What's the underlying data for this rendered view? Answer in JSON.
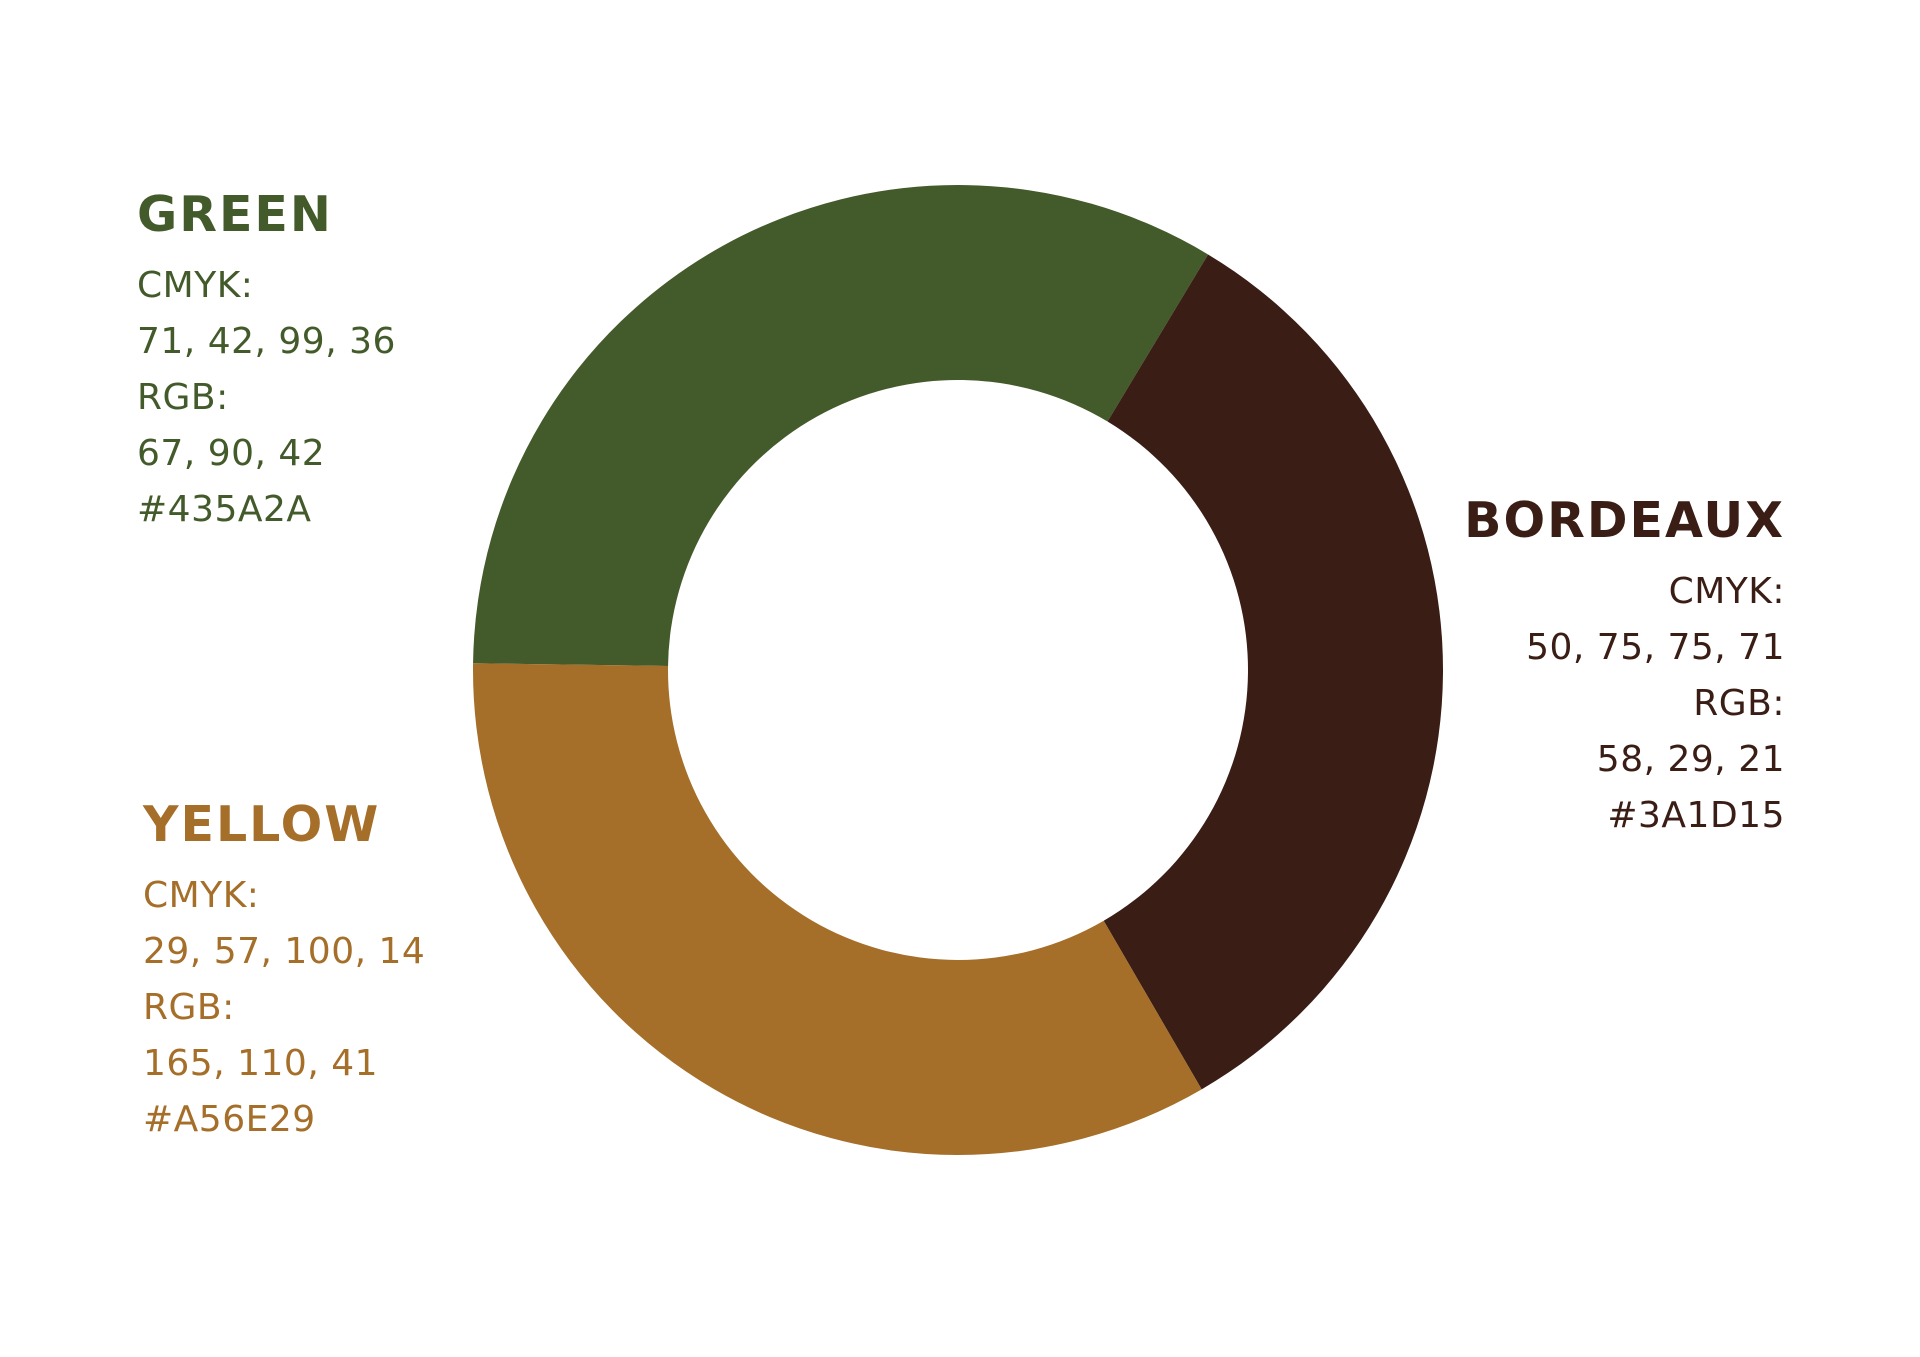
{
  "swatches": {
    "green": {
      "name": "GREEN",
      "cmyk_label": "CMYK:",
      "cmyk_value": "71, 42, 99, 36",
      "rgb_label": "RGB:",
      "rgb_value": "67, 90, 42",
      "hex": "#435A2A",
      "color": "#435A2A"
    },
    "bordeaux": {
      "name": "BORDEAUX",
      "cmyk_label": "CMYK:",
      "cmyk_value": "50, 75, 75, 71",
      "rgb_label": "RGB:",
      "rgb_value": "58, 29, 21",
      "hex": "#3A1D15",
      "color": "#3A1D15"
    },
    "yellow": {
      "name": "YELLOW",
      "cmyk_label": "CMYK:",
      "cmyk_value": "29, 57, 100, 14",
      "rgb_label": "RGB:",
      "rgb_value": "165, 110, 41",
      "hex": "#A56E29",
      "color": "#A56E29"
    }
  },
  "donut": {
    "segments": [
      {
        "key": "green",
        "share": 0.334,
        "color": "#435A2A"
      },
      {
        "key": "bordeaux",
        "share": 0.33,
        "color": "#3A1D15"
      },
      {
        "key": "yellow",
        "share": 0.336,
        "color": "#A56E29"
      }
    ]
  }
}
